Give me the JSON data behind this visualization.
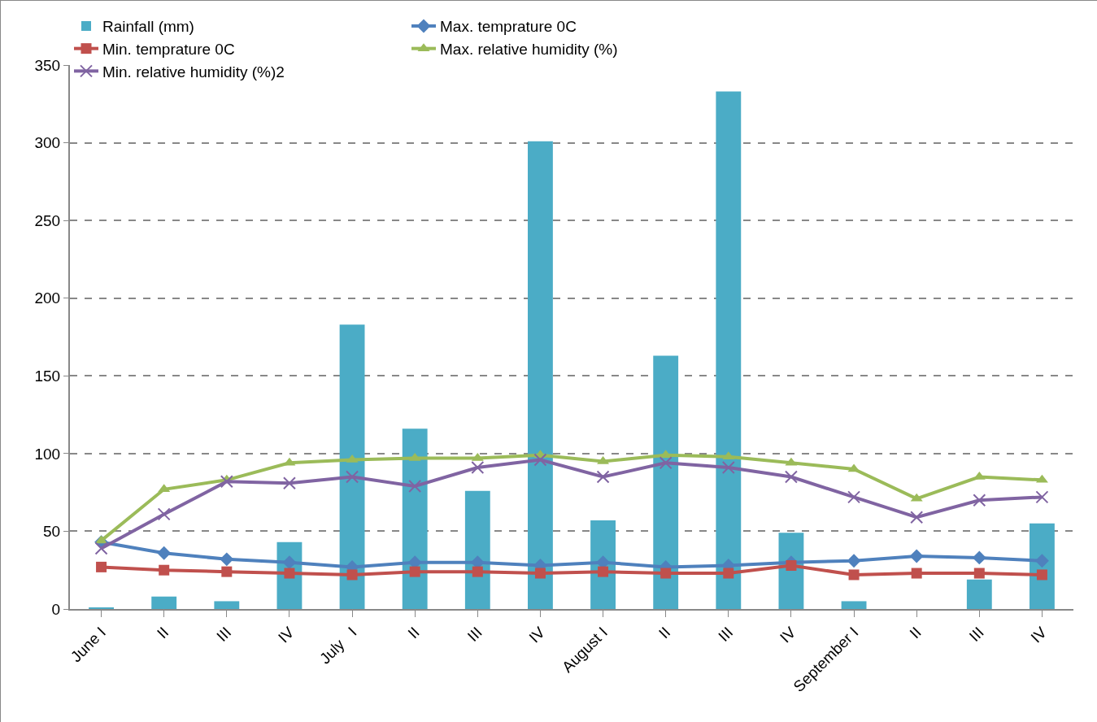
{
  "chart_data": {
    "type": "bar",
    "categories": [
      "June I",
      "II",
      "III",
      "IV",
      "July   I",
      "II",
      "III",
      "IV",
      "August I",
      "II",
      "III",
      "IV",
      "September I",
      "II",
      "III",
      "IV"
    ],
    "series": [
      {
        "name": "Rainfall (mm)",
        "color": "#4bacc6",
        "values": [
          1,
          8,
          5,
          43,
          183,
          116,
          76,
          301,
          57,
          163,
          333,
          49,
          5,
          0,
          19,
          55
        ]
      },
      {
        "name": "Max. temprature 0C",
        "type": "line",
        "marker": "diamond",
        "color": "#4f81bd",
        "values": [
          43,
          36,
          32,
          30,
          27,
          30,
          30,
          28,
          30,
          27,
          28,
          30,
          31,
          34,
          33,
          31
        ]
      },
      {
        "name": "Min. temprature 0C",
        "type": "line",
        "marker": "square",
        "color": "#c0504d",
        "values": [
          27,
          25,
          24,
          23,
          22,
          24,
          24,
          23,
          24,
          23,
          23,
          28,
          22,
          23,
          23,
          22
        ]
      },
      {
        "name": "Max. relative humidity (%)",
        "type": "line",
        "marker": "triangle",
        "color": "#9bbb59",
        "values": [
          44,
          77,
          83,
          94,
          96,
          97,
          97,
          99,
          95,
          99,
          98,
          94,
          90,
          71,
          85,
          83
        ]
      },
      {
        "name": "Min. relative humidity (%)2",
        "type": "line",
        "marker": "cross",
        "color": "#8064a2",
        "values": [
          39,
          61,
          82,
          81,
          85,
          79,
          91,
          96,
          85,
          94,
          91,
          85,
          72,
          59,
          70,
          72
        ]
      }
    ],
    "ylim": [
      0,
      350
    ],
    "yticks": [
      0,
      50,
      100,
      150,
      200,
      250,
      300,
      350
    ],
    "grid": "y",
    "legend": "top",
    "line_style": "solid"
  }
}
